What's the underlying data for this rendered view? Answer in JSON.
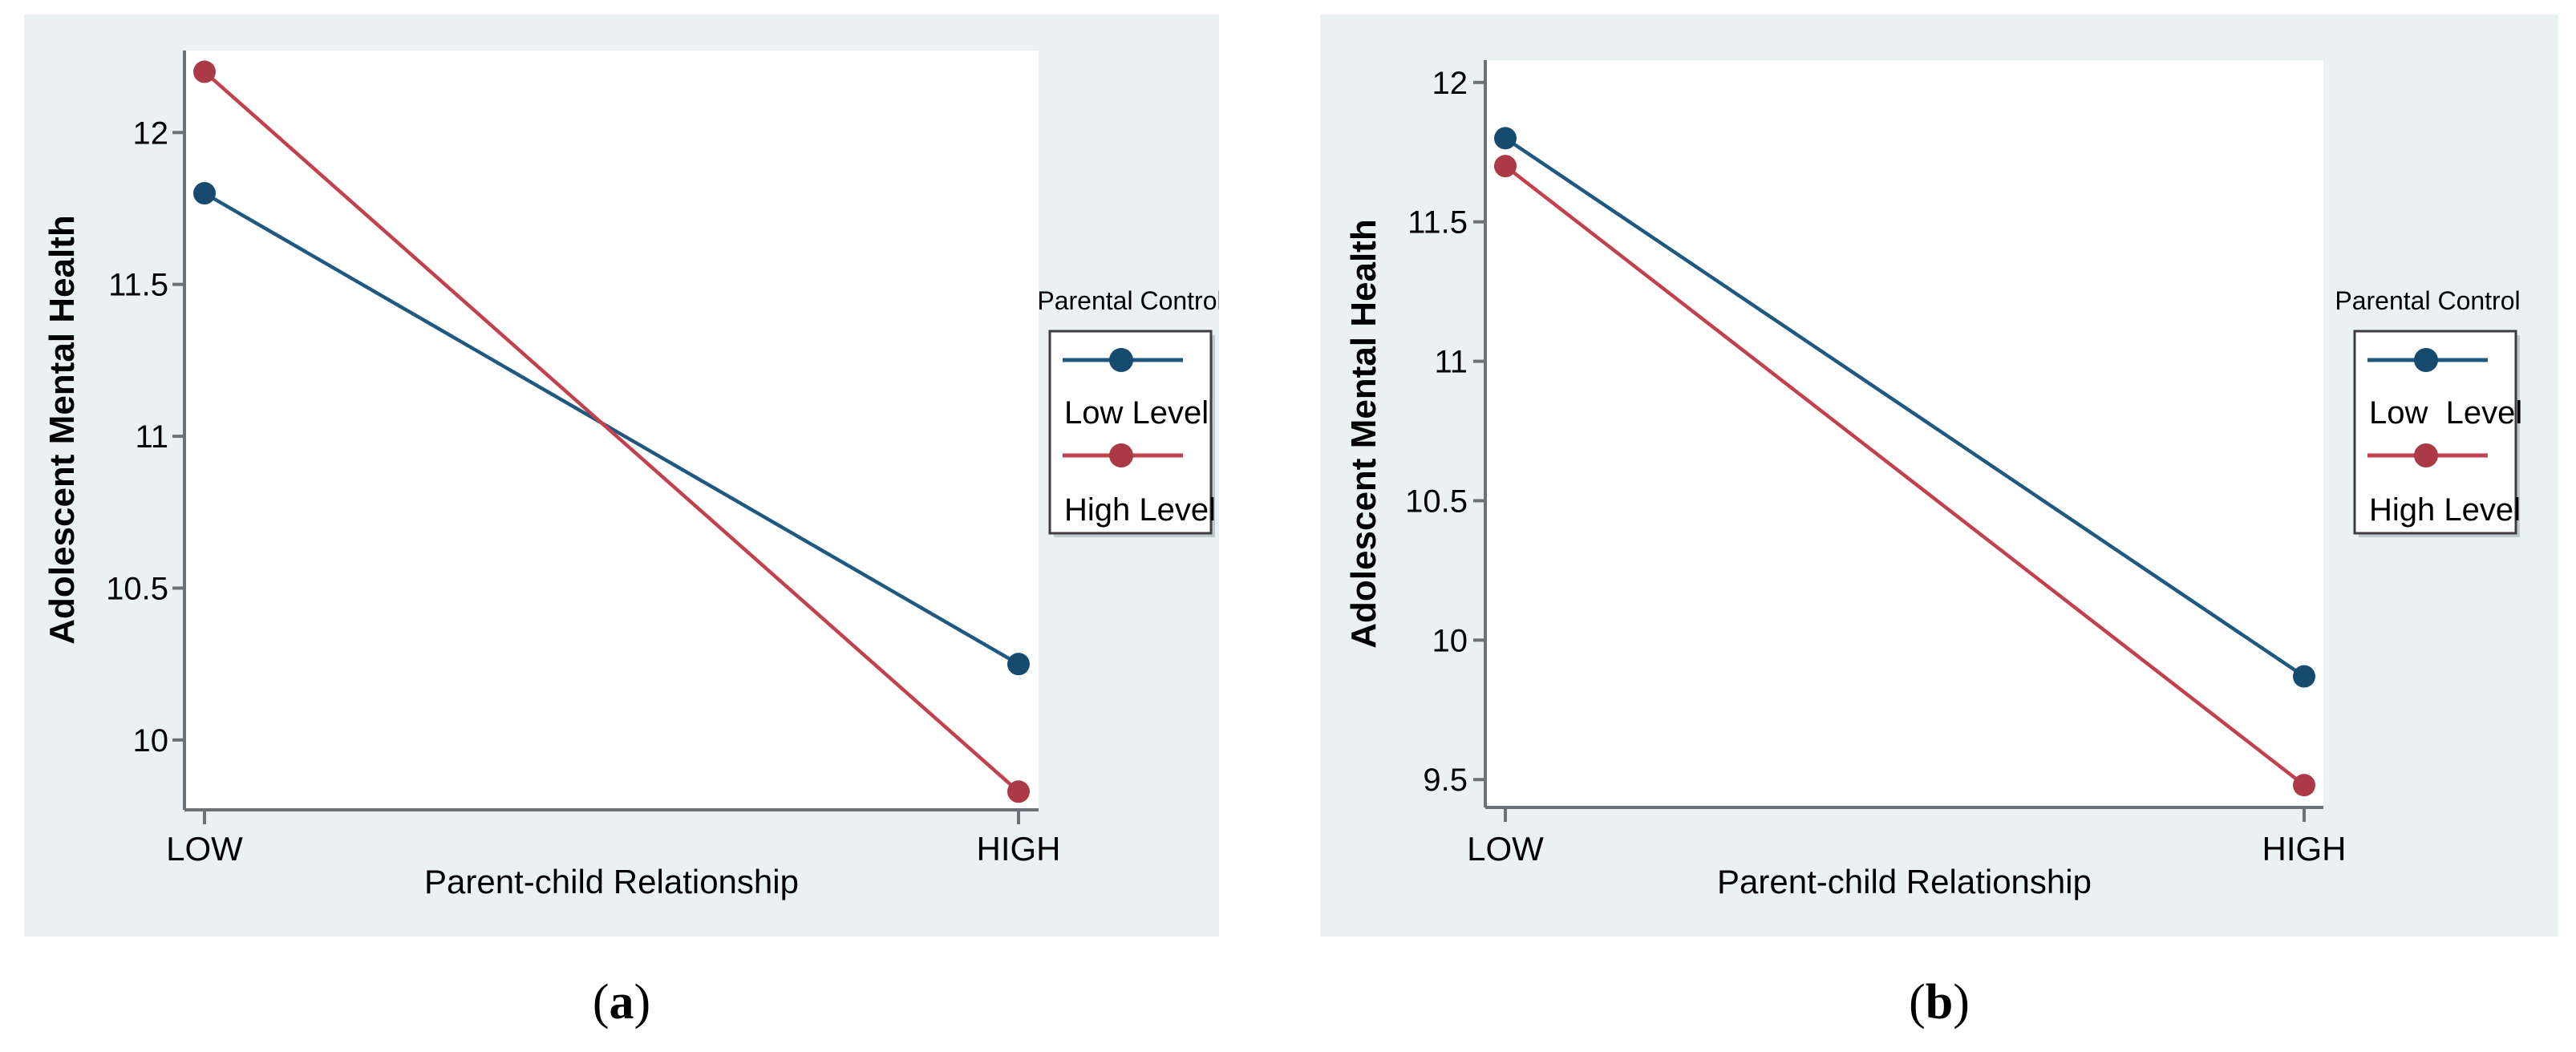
{
  "figure": {
    "captions": [
      {
        "open": "(",
        "letter": "a",
        "close": ")"
      },
      {
        "open": "(",
        "letter": "b",
        "close": ")"
      }
    ]
  },
  "colors": {
    "page_bg": "#ffffff",
    "panel_bg": "#e9f1f2",
    "plot_bg": "#ffffff",
    "axis": "#6a7276",
    "text": "#000000",
    "legend_border": "#3d3d3d",
    "legend_bg": "#ffffff",
    "legend_shadow": "#9fb0b4",
    "blue_line": "#20597f",
    "blue_marker": "#164a6e",
    "red_line": "#c1424e",
    "red_marker": "#ab3a46"
  },
  "chart_data": [
    {
      "type": "line",
      "panel": "a",
      "xlabel": "Parent-child Relationship",
      "ylabel": "Adolescent Mental Health",
      "x_categories": [
        "LOW",
        "HIGH"
      ],
      "ylim": [
        9.77,
        12.27
      ],
      "yticks": [
        {
          "value": 10,
          "label": "10"
        },
        {
          "value": 10.5,
          "label": "10.5"
        },
        {
          "value": 11,
          "label": "11"
        },
        {
          "value": 11.5,
          "label": "11.5"
        },
        {
          "value": 12,
          "label": "12"
        }
      ],
      "legend": {
        "title": "Parental Control",
        "entries": [
          {
            "label": "Low Level"
          },
          {
            "label": "High Level"
          }
        ]
      },
      "series": [
        {
          "name": "Low Level",
          "line_color": "#20597f",
          "marker_color": "#164a6e",
          "values": [
            11.8,
            10.25
          ]
        },
        {
          "name": "High Level",
          "line_color": "#c1424e",
          "marker_color": "#ab3a46",
          "values": [
            12.2,
            9.83
          ]
        }
      ]
    },
    {
      "type": "line",
      "panel": "b",
      "xlabel": "Parent-child Relationship",
      "ylabel": "Adolescent Mental Health",
      "x_categories": [
        "LOW",
        "HIGH"
      ],
      "ylim": [
        9.4,
        12.08
      ],
      "yticks": [
        {
          "value": 9.5,
          "label": "9.5"
        },
        {
          "value": 10,
          "label": "10"
        },
        {
          "value": 10.5,
          "label": "10.5"
        },
        {
          "value": 11,
          "label": "11"
        },
        {
          "value": 11.5,
          "label": "11.5"
        },
        {
          "value": 12,
          "label": "12"
        }
      ],
      "legend": {
        "title": "Parental Control",
        "entries": [
          {
            "label": "Low  Level"
          },
          {
            "label": "High Level"
          }
        ]
      },
      "series": [
        {
          "name": "Low Level",
          "line_color": "#20597f",
          "marker_color": "#164a6e",
          "values": [
            11.8,
            9.87
          ]
        },
        {
          "name": "High Level",
          "line_color": "#c1424e",
          "marker_color": "#ab3a46",
          "values": [
            11.7,
            9.48
          ]
        }
      ]
    }
  ]
}
